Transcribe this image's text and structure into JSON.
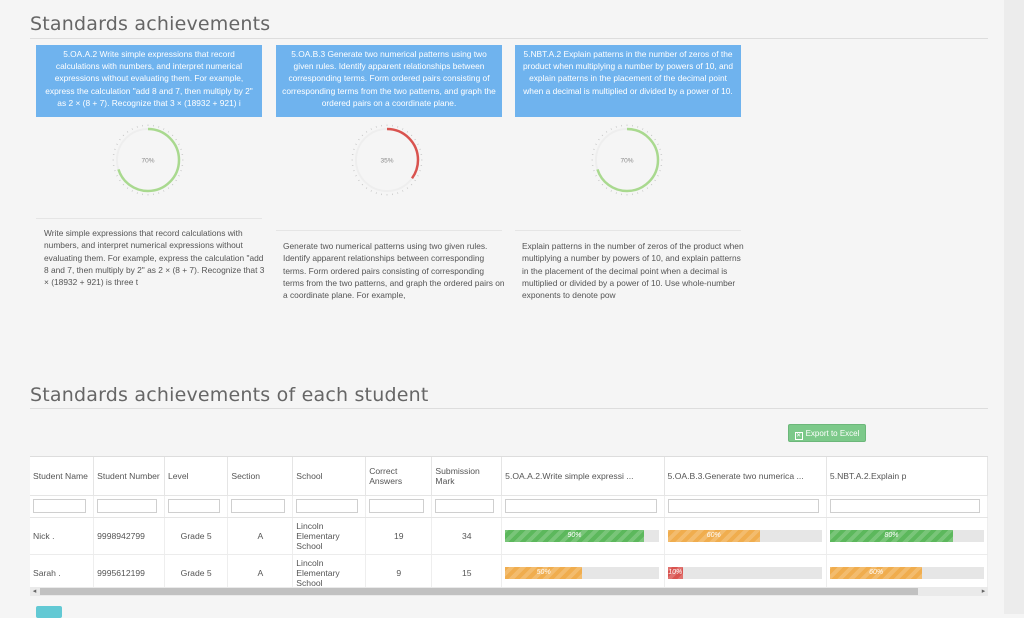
{
  "section1": {
    "title": "Standards achievements"
  },
  "standards": [
    {
      "box": "5.OA.A.2 Write simple expressions that record calculations with numbers, and interpret numerical expressions without evaluating them. For example, express the calculation \"add 8 and 7, then multiply by 2\" as 2 × (8 + 7). Recognize that 3 × (18932 + 921) i",
      "percent": 70,
      "percent_label": "70%",
      "color": "#a9d98f",
      "description": "Write simple expressions that record calculations with numbers, and interpret numerical expressions without evaluating them. For example, express the calculation \"add 8 and 7, then multiply by 2\" as 2 × (8 + 7). Recognize that 3 × (18932 + 921) is three t"
    },
    {
      "box": "5.OA.B.3 Generate two numerical patterns using two given rules. Identify apparent relationships between corresponding terms. Form ordered pairs consisting of corresponding terms from the two patterns, and graph the ordered pairs on a coordinate plane.",
      "percent": 35,
      "percent_label": "35%",
      "color": "#d9534f",
      "description": "Generate two numerical patterns using two given rules. Identify apparent relationships between corresponding terms. Form ordered pairs consisting of corresponding terms from the two patterns, and graph the ordered pairs on a coordinate plane. For example,"
    },
    {
      "box": "5.NBT.A.2 Explain patterns in the number of zeros of the product when multiplying a number by powers of 10, and explain patterns in the placement of the decimal point when a decimal is multiplied or divided by a power of 10.",
      "percent": 70,
      "percent_label": "70%",
      "color": "#a9d98f",
      "description": "Explain patterns in the number of zeros of the product when multiplying a number by powers of 10, and explain patterns in the placement of the decimal point when a decimal is multiplied or divided by a power of 10. Use whole-number exponents to denote pow"
    }
  ],
  "section2": {
    "title": "Standards achievements of each student"
  },
  "export": {
    "label": "Export to Excel",
    "icon": "excel-icon"
  },
  "table": {
    "headers": {
      "student_name": "Student Name",
      "student_number": "Student Number",
      "level": "Level",
      "section": "Section",
      "school": "School",
      "correct": "Correct Answers",
      "submission": "Submission Mark",
      "std1": "5.OA.A.2.Write simple expressi ...",
      "std2": "5.OA.B.3.Generate two numerica ...",
      "std3": "5.NBT.A.2.Explain p"
    },
    "rows": [
      {
        "name": "Nick .",
        "number": "9998942799",
        "level": "Grade 5",
        "section": "A",
        "school": "Lincoln Elementary School",
        "correct": "19",
        "submission": "34",
        "std1": {
          "value": 90,
          "label": "90%",
          "color": "#5cb85c"
        },
        "std2": {
          "value": 60,
          "label": "60%",
          "color": "#f0ad4e"
        },
        "std3": {
          "value": 80,
          "label": "80%",
          "color": "#5cb85c"
        }
      },
      {
        "name": "Sarah .",
        "number": "9995612199",
        "level": "Grade 5",
        "section": "A",
        "school": "Lincoln Elementary School",
        "correct": "9",
        "submission": "15",
        "std1": {
          "value": 50,
          "label": "50%",
          "color": "#f0ad4e"
        },
        "std2": {
          "value": 10,
          "label": "10%",
          "color": "#d9534f"
        },
        "std3": {
          "value": 60,
          "label": "60%",
          "color": "#f0ad4e"
        }
      }
    ]
  },
  "scrollbar": {
    "left_arrow": "◂",
    "right_arrow": "▸"
  }
}
